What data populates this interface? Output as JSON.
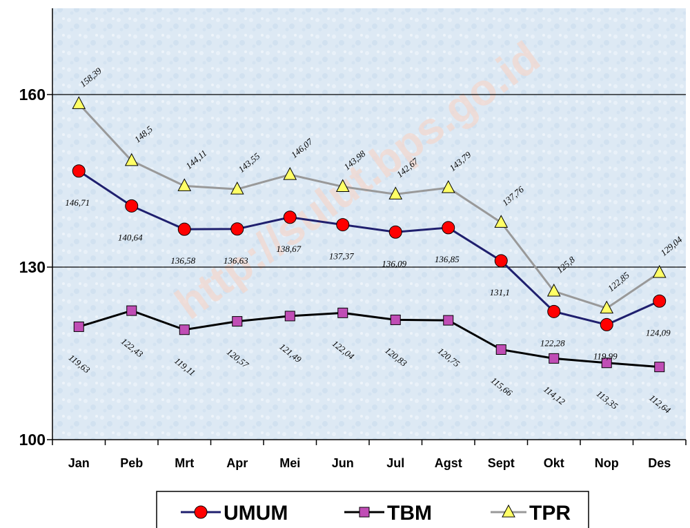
{
  "watermark": "http://sulut.bps.go.id",
  "chart_data": {
    "type": "line",
    "title": "",
    "xlabel": "",
    "ylabel": "",
    "ylim": [
      100,
      175
    ],
    "yticks": [
      100,
      130,
      160
    ],
    "grid": "horizontal",
    "legend_position": "bottom",
    "categories": [
      "Jan",
      "Peb",
      "Mrt",
      "Apr",
      "Mei",
      "Jun",
      "Jul",
      "Agst",
      "Sept",
      "Okt",
      "Nop",
      "Des"
    ],
    "series": [
      {
        "name": "UMUM",
        "color": "#1f1f6e",
        "marker": "circle",
        "marker_color": "#ff0000",
        "values": [
          146.71,
          140.64,
          136.58,
          136.63,
          138.67,
          137.37,
          136.09,
          136.85,
          131.1,
          122.28,
          119.99,
          124.09
        ],
        "labels": [
          "146,71",
          "140,64",
          "136,58",
          "136,63",
          "138,67",
          "137,37",
          "136,09",
          "136,85",
          "131,1",
          "122,28",
          "119,99",
          "124,09"
        ]
      },
      {
        "name": "TBM",
        "color": "#000000",
        "marker": "square",
        "marker_color": "#c04db5",
        "values": [
          119.63,
          122.43,
          119.11,
          120.57,
          121.49,
          122.04,
          120.83,
          120.75,
          115.66,
          114.12,
          113.35,
          112.64
        ],
        "labels": [
          "119,63",
          "122,43",
          "119,11",
          "120,57",
          "121,49",
          "122,04",
          "120,83",
          "120,75",
          "115,66",
          "114,12",
          "113,35",
          "112,64"
        ]
      },
      {
        "name": "TPR",
        "color": "#999999",
        "marker": "triangle",
        "marker_color": "#ffff66",
        "values": [
          158.39,
          148.5,
          144.11,
          143.55,
          146.07,
          143.98,
          142.67,
          143.79,
          137.76,
          125.8,
          122.85,
          129.04
        ],
        "labels": [
          "158,39",
          "148,5",
          "144,11",
          "143,55",
          "146,07",
          "143,98",
          "142,67",
          "143,79",
          "137,76",
          "125,8",
          "122,85",
          "129,04"
        ]
      }
    ]
  }
}
